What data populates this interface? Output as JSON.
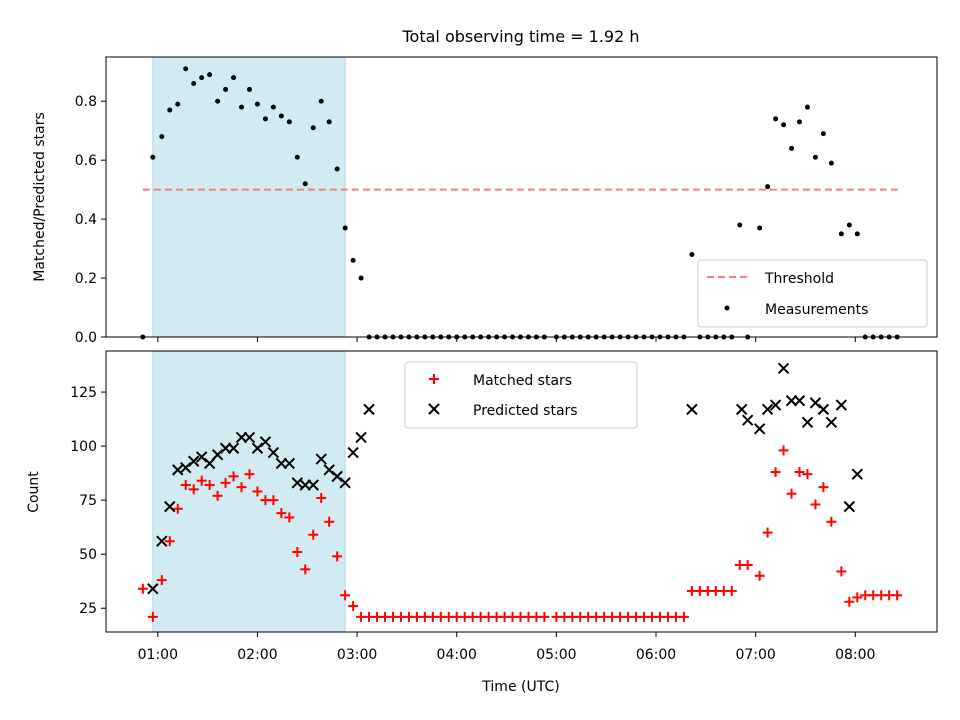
{
  "chart_data": [
    {
      "type": "scatter",
      "title": "Total observing time = 1.92 h",
      "ylabel": "Matched/Predicted stars",
      "ylim": [
        0,
        0.95
      ],
      "yticks": [
        "0.0",
        "0.2",
        "0.4",
        "0.6",
        "0.8"
      ],
      "ytick_values": [
        0,
        0.2,
        0.4,
        0.6,
        0.8
      ],
      "xlim": [
        0.48,
        8.82
      ],
      "shaded_interval": [
        0.95,
        2.88
      ],
      "shade_color": "#add8e6",
      "threshold": {
        "name": "Threshold",
        "value": 0.5,
        "x_range": [
          0.85,
          8.45
        ],
        "color": "#f08080"
      },
      "series": [
        {
          "name": "Measurements",
          "color": "#000000",
          "x": [
            0.85,
            0.95,
            1.04,
            1.12,
            1.2,
            1.28,
            1.36,
            1.44,
            1.52,
            1.6,
            1.68,
            1.76,
            1.84,
            1.92,
            2.0,
            2.08,
            2.16,
            2.24,
            2.32,
            2.4,
            2.48,
            2.56,
            2.64,
            2.72,
            2.8,
            2.88,
            2.96,
            3.04,
            3.12,
            3.2,
            3.28,
            3.36,
            3.44,
            3.52,
            3.6,
            3.68,
            3.76,
            3.84,
            3.92,
            4.0,
            4.08,
            4.16,
            4.24,
            4.32,
            4.4,
            4.48,
            4.56,
            4.64,
            4.72,
            4.8,
            4.88,
            5.0,
            5.08,
            5.16,
            5.24,
            5.32,
            5.4,
            5.48,
            5.56,
            5.64,
            5.72,
            5.8,
            5.88,
            5.96,
            6.04,
            6.12,
            6.2,
            6.28,
            6.36,
            6.44,
            6.52,
            6.6,
            6.68,
            6.76,
            6.84,
            6.92,
            7.04,
            7.12,
            7.2,
            7.28,
            7.36,
            7.44,
            7.52,
            7.6,
            7.68,
            7.76,
            7.86,
            7.94,
            8.02,
            8.1,
            8.18,
            8.26,
            8.34,
            8.42
          ],
          "y": [
            0.0,
            0.61,
            0.68,
            0.77,
            0.79,
            0.91,
            0.86,
            0.88,
            0.89,
            0.8,
            0.84,
            0.88,
            0.78,
            0.84,
            0.79,
            0.74,
            0.78,
            0.75,
            0.73,
            0.61,
            0.52,
            0.71,
            0.8,
            0.73,
            0.57,
            0.37,
            0.26,
            0.2,
            0.0,
            0.0,
            0.0,
            0.0,
            0.0,
            0.0,
            0.0,
            0.0,
            0.0,
            0.0,
            0.0,
            0.0,
            0.0,
            0.0,
            0.0,
            0.0,
            0.0,
            0.0,
            0.0,
            0.0,
            0.0,
            0.0,
            0.0,
            0.0,
            0.0,
            0.0,
            0.0,
            0.0,
            0.0,
            0.0,
            0.0,
            0.0,
            0.0,
            0.0,
            0.0,
            0.0,
            0.0,
            0.0,
            0.0,
            0.0,
            0.28,
            0.0,
            0.0,
            0.0,
            0.0,
            0.0,
            0.38,
            0.0,
            0.37,
            0.51,
            0.74,
            0.72,
            0.64,
            0.73,
            0.78,
            0.61,
            0.69,
            0.59,
            0.35,
            0.38,
            0.35,
            0.0,
            0.0,
            0.0,
            0.0,
            0.0
          ]
        }
      ],
      "legend": {
        "placement": "lower-right",
        "entries": [
          "Threshold",
          "Measurements"
        ]
      }
    },
    {
      "type": "scatter",
      "xlabel": "Time (UTC)",
      "ylabel": "Count",
      "ylim": [
        14,
        144
      ],
      "yticks": [
        "25",
        "50",
        "75",
        "100",
        "125"
      ],
      "ytick_values": [
        25,
        50,
        75,
        100,
        125
      ],
      "xlim": [
        0.48,
        8.82
      ],
      "xticks": [
        "01:00",
        "02:00",
        "03:00",
        "04:00",
        "05:00",
        "06:00",
        "07:00",
        "08:00"
      ],
      "xtick_values": [
        1,
        2,
        3,
        4,
        5,
        6,
        7,
        8
      ],
      "shaded_interval": [
        0.95,
        2.88
      ],
      "series": [
        {
          "name": "Matched stars",
          "marker": "plus",
          "color": "#ff0000",
          "x": [
            0.85,
            0.95,
            1.04,
            1.12,
            1.2,
            1.28,
            1.36,
            1.44,
            1.52,
            1.6,
            1.68,
            1.76,
            1.84,
            1.92,
            2.0,
            2.08,
            2.16,
            2.24,
            2.32,
            2.4,
            2.48,
            2.56,
            2.64,
            2.72,
            2.8,
            2.88,
            2.96,
            3.04,
            3.12,
            3.2,
            3.28,
            3.36,
            3.44,
            3.52,
            3.6,
            3.68,
            3.76,
            3.84,
            3.92,
            4.0,
            4.08,
            4.16,
            4.24,
            4.32,
            4.4,
            4.48,
            4.56,
            4.64,
            4.72,
            4.8,
            4.88,
            5.0,
            5.08,
            5.16,
            5.24,
            5.32,
            5.4,
            5.48,
            5.56,
            5.64,
            5.72,
            5.8,
            5.88,
            5.96,
            6.04,
            6.12,
            6.2,
            6.28,
            6.36,
            6.44,
            6.52,
            6.6,
            6.68,
            6.76,
            6.84,
            6.92,
            7.04,
            7.12,
            7.2,
            7.28,
            7.36,
            7.44,
            7.52,
            7.6,
            7.68,
            7.76,
            7.86,
            7.94,
            8.02,
            8.1,
            8.18,
            8.26,
            8.34,
            8.42
          ],
          "y": [
            34,
            21,
            38,
            56,
            71,
            82,
            80,
            84,
            82,
            77,
            83,
            86,
            81,
            87,
            79,
            75,
            75,
            69,
            67,
            51,
            43,
            59,
            76,
            65,
            49,
            31,
            26,
            21,
            21,
            21,
            21,
            21,
            21,
            21,
            21,
            21,
            21,
            21,
            21,
            21,
            21,
            21,
            21,
            21,
            21,
            21,
            21,
            21,
            21,
            21,
            21,
            21,
            21,
            21,
            21,
            21,
            21,
            21,
            21,
            21,
            21,
            21,
            21,
            21,
            21,
            21,
            21,
            21,
            33,
            33,
            33,
            33,
            33,
            33,
            45,
            45,
            40,
            60,
            88,
            98,
            78,
            88,
            87,
            73,
            81,
            65,
            42,
            28,
            30,
            31,
            31,
            31,
            31,
            31
          ]
        },
        {
          "name": "Predicted stars",
          "marker": "x",
          "color": "#000000",
          "x": [
            0.95,
            1.04,
            1.12,
            1.2,
            1.28,
            1.36,
            1.44,
            1.52,
            1.6,
            1.68,
            1.76,
            1.84,
            1.92,
            2.0,
            2.08,
            2.16,
            2.24,
            2.32,
            2.4,
            2.48,
            2.56,
            2.64,
            2.72,
            2.8,
            2.88,
            2.96,
            3.04,
            3.12,
            6.36,
            6.86,
            6.92,
            7.04,
            7.12,
            7.2,
            7.28,
            7.36,
            7.44,
            7.52,
            7.6,
            7.68,
            7.76,
            7.86,
            7.94,
            8.02
          ],
          "y": [
            34,
            56,
            72,
            89,
            90,
            93,
            95,
            92,
            96,
            99,
            99,
            104,
            104,
            99,
            102,
            97,
            92,
            92,
            83,
            82,
            82,
            94,
            89,
            86,
            83,
            97,
            104,
            117,
            117,
            117,
            112,
            108,
            117,
            119,
            136,
            121,
            121,
            111,
            120,
            117,
            111,
            119,
            72,
            87
          ]
        }
      ],
      "legend": {
        "placement": "upper-center",
        "entries": [
          "Matched stars",
          "Predicted stars"
        ]
      }
    }
  ]
}
